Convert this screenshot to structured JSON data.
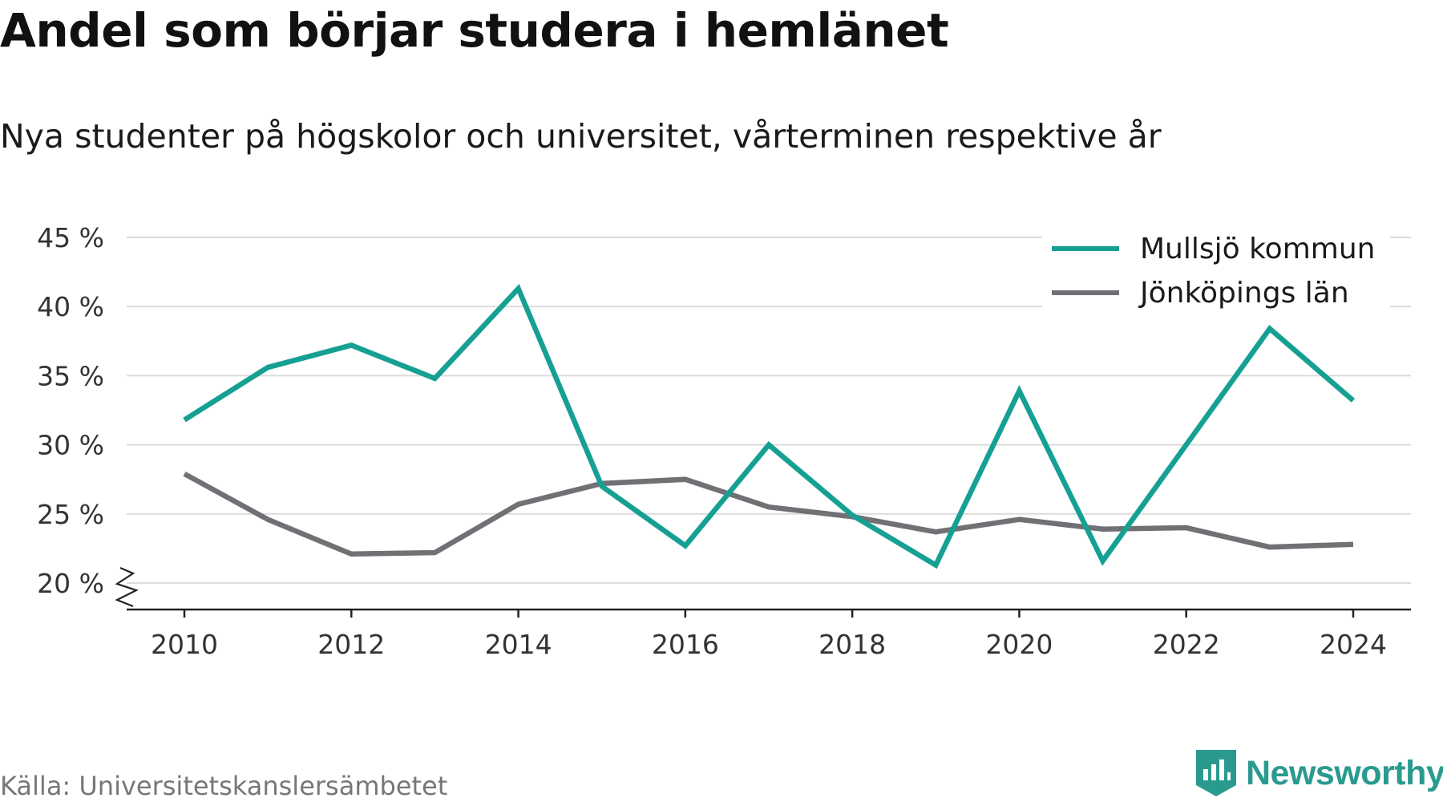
{
  "title": "Andel som börjar studera i hemlänet",
  "subtitle": "Nya studenter på högskolor och universitet, vårterminen respektive år",
  "source": "Källa: Universitetskanslersämbetet",
  "brand": {
    "name": "Newsworthy",
    "icon": "newsworthy-logo-icon",
    "color": "#2a9a8f"
  },
  "chart_data": {
    "type": "line",
    "x": [
      2010,
      2011,
      2012,
      2013,
      2014,
      2015,
      2016,
      2017,
      2018,
      2019,
      2020,
      2021,
      2022,
      2023,
      2024
    ],
    "x_ticks": [
      2010,
      2012,
      2014,
      2016,
      2018,
      2020,
      2022,
      2024
    ],
    "y_ticks": [
      20,
      25,
      30,
      35,
      40,
      45
    ],
    "y_tick_labels": [
      "20 %",
      "25 %",
      "30 %",
      "35 %",
      "40 %",
      "45 %"
    ],
    "ylim": [
      20,
      45
    ],
    "y_axis_break": true,
    "grid": true,
    "legend_position": "top-right",
    "series": [
      {
        "name": "Mullsjö kommun",
        "color": "#16a093",
        "values": [
          31.8,
          35.6,
          37.2,
          34.8,
          41.3,
          27.0,
          22.7,
          30.0,
          24.9,
          21.3,
          33.9,
          21.6,
          30.0,
          38.4,
          33.2
        ]
      },
      {
        "name": "Jönköpings län",
        "color": "#717075",
        "values": [
          27.9,
          24.6,
          22.1,
          22.2,
          25.7,
          27.2,
          27.5,
          25.5,
          24.8,
          23.7,
          24.6,
          23.9,
          24.0,
          22.6,
          22.8
        ]
      }
    ]
  }
}
